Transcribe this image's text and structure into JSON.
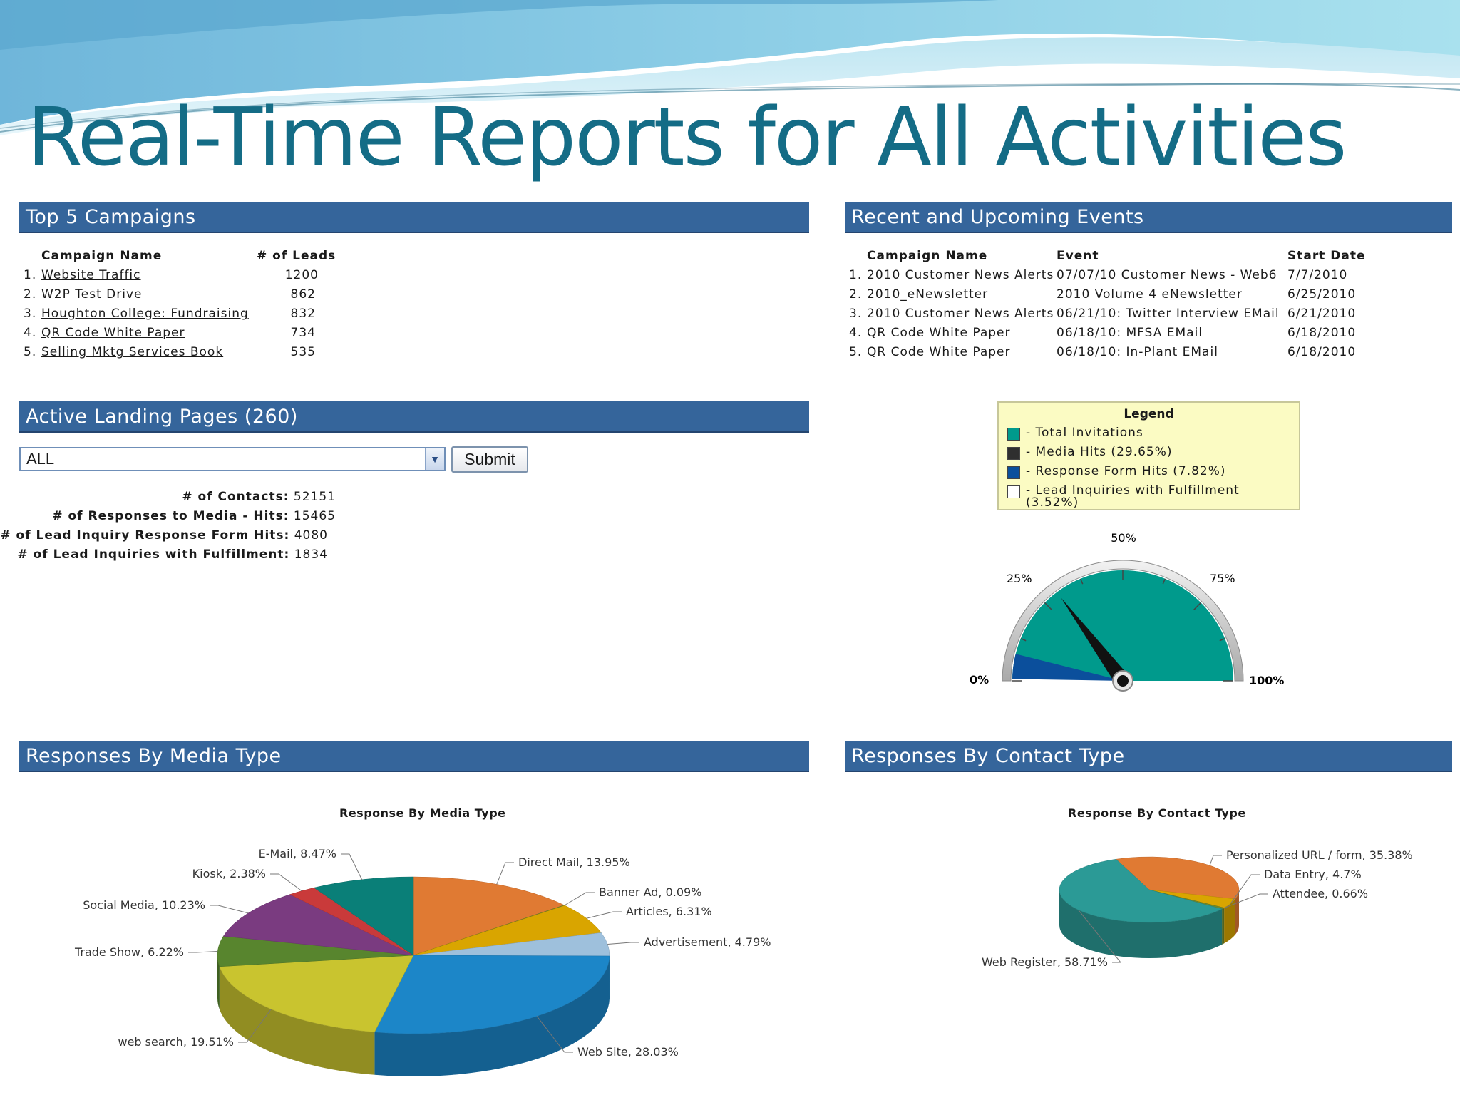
{
  "title": "Real-Time Reports for All Activities",
  "top_campaigns": {
    "header": "Top 5 Campaigns",
    "col_name": "Campaign Name",
    "col_leads": "# of Leads",
    "rows": [
      {
        "rank": "1.",
        "name": "Website Traffic",
        "leads": "1200"
      },
      {
        "rank": "2.",
        "name": "W2P Test Drive",
        "leads": "862"
      },
      {
        "rank": "3.",
        "name": "Houghton College: Fundraising",
        "leads": "832"
      },
      {
        "rank": "4.",
        "name": "QR Code White Paper",
        "leads": "734"
      },
      {
        "rank": "5.",
        "name": "Selling Mktg Services Book",
        "leads": "535"
      }
    ]
  },
  "events": {
    "header": "Recent and Upcoming Events",
    "col_name": "Campaign Name",
    "col_event": "Event",
    "col_date": "Start Date",
    "rows": [
      {
        "rank": "1.",
        "name": "2010 Customer News Alerts",
        "event": "07/07/10 Customer News - Web6",
        "date": "7/7/2010"
      },
      {
        "rank": "2.",
        "name": "2010_eNewsletter",
        "event": "2010 Volume 4 eNewsletter",
        "date": "6/25/2010"
      },
      {
        "rank": "3.",
        "name": "2010 Customer News Alerts",
        "event": "06/21/10: Twitter Interview EMail",
        "date": "6/21/2010"
      },
      {
        "rank": "4.",
        "name": "QR Code White Paper",
        "event": "06/18/10: MFSA EMail",
        "date": "6/18/2010"
      },
      {
        "rank": "5.",
        "name": "QR Code White Paper",
        "event": "06/18/10: In-Plant EMail",
        "date": "6/18/2010"
      }
    ]
  },
  "landing": {
    "header": "Active Landing Pages (260)",
    "select_value": "ALL",
    "submit_label": "Submit",
    "stats": [
      {
        "label": "# of Contacts:",
        "value": "52151"
      },
      {
        "label": "# of Responses to Media - Hits:",
        "value": "15465"
      },
      {
        "label": "# of Lead Inquiry Response Form Hits:",
        "value": "4080"
      },
      {
        "label": "# of Lead Inquiries with Fulfillment:",
        "value": "1834"
      }
    ]
  },
  "gauge": {
    "legend_title": "Legend",
    "legend": [
      {
        "text": "- Total Invitations",
        "color": "#009a8c"
      },
      {
        "text": "- Media Hits (29.65%)",
        "color": "#2f2f2f"
      },
      {
        "text": "- Response Form Hits (7.82%)",
        "color": "#0b4f9c"
      },
      {
        "text": "- Lead Inquiries with Fulfillment",
        "text2": "(3.52%)",
        "color": "#ffffff"
      }
    ],
    "labels": {
      "p0": "0%",
      "p25": "25%",
      "p50": "50%",
      "p75": "75%",
      "p100": "100%"
    },
    "needle_value": 29.65,
    "response_value": 7.82,
    "fulfillment_value": 3.52
  },
  "media": {
    "header": "Responses By Media Type",
    "chart_title": "Response By Media Type"
  },
  "contact": {
    "header": "Responses By Contact Type",
    "chart_title": "Response By Contact Type"
  },
  "chart_data": [
    {
      "type": "pie",
      "title": "Response By Media Type",
      "slices": [
        {
          "label": "Direct Mail",
          "value": 13.95,
          "color": "#e07a33"
        },
        {
          "label": "Banner Ad",
          "value": 0.09,
          "color": "#6e8a2c"
        },
        {
          "label": "Articles",
          "value": 6.31,
          "color": "#d9a500"
        },
        {
          "label": "Advertisement",
          "value": 4.79,
          "color": "#9ec0dc"
        },
        {
          "label": "Web Site",
          "value": 28.03,
          "color": "#1c86c8"
        },
        {
          "label": "web search",
          "value": 19.51,
          "color": "#c9c42f"
        },
        {
          "label": "Trade Show",
          "value": 6.22,
          "color": "#58852e"
        },
        {
          "label": "Social Media",
          "value": 10.23,
          "color": "#7a3b80"
        },
        {
          "label": "Kiosk",
          "value": 2.38,
          "color": "#c93a3a"
        },
        {
          "label": "E-Mail",
          "value": 8.47,
          "color": "#0a7f78"
        }
      ]
    },
    {
      "type": "pie",
      "title": "Response By Contact Type",
      "slices": [
        {
          "label": "Personalized URL / form",
          "value": 35.38,
          "color": "#e07a33"
        },
        {
          "label": "Data Entry",
          "value": 4.7,
          "color": "#d9a500"
        },
        {
          "label": "Attendee",
          "value": 0.66,
          "color": "#6e8a2c"
        },
        {
          "label": "Web Register",
          "value": 58.71,
          "color": "#2b9a96"
        }
      ]
    }
  ]
}
